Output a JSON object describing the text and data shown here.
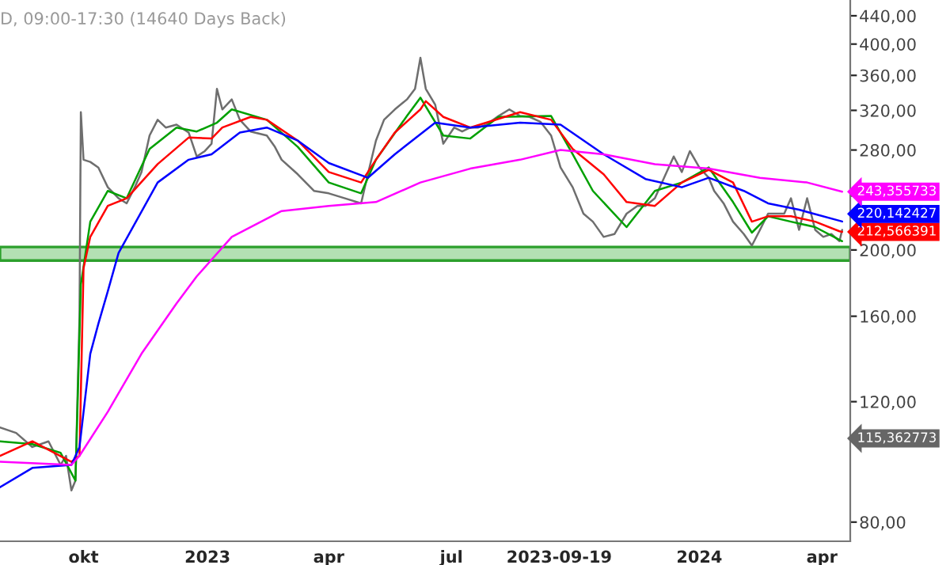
{
  "chart_data": {
    "type": "line",
    "title": "D, 09:00-17:30 (14640 Days Back)",
    "series": [
      {
        "color": "#6e6e6e",
        "x": [
          "2022-07-31",
          "2022-08-12",
          "2022-08-24",
          "2022-09-05",
          "2022-09-14",
          "2022-09-18",
          "2022-09-22",
          "2022-09-25",
          "2022-09-28",
          "2022-09-29",
          "2022-10-01",
          "2022-10-06",
          "2022-10-12",
          "2022-10-19",
          "2022-10-27",
          "2022-11-02",
          "2022-11-08",
          "2022-11-13",
          "2022-11-19",
          "2022-11-25",
          "2022-12-01",
          "2022-12-09",
          "2022-12-18",
          "2022-12-24",
          "2022-12-30",
          "2023-01-04",
          "2023-01-08",
          "2023-01-12",
          "2023-01-19",
          "2023-01-25",
          "2023-02-02",
          "2023-02-14",
          "2023-02-20",
          "2023-02-25",
          "2023-03-09",
          "2023-03-21",
          "2023-04-01",
          "2023-04-13",
          "2023-04-25",
          "2023-04-30",
          "2023-05-06",
          "2023-05-12",
          "2023-05-20",
          "2023-05-29",
          "2023-06-04",
          "2023-06-08",
          "2023-06-12",
          "2023-06-19",
          "2023-06-25",
          "2023-07-03",
          "2023-07-09",
          "2023-07-15",
          "2023-07-21",
          "2023-07-27",
          "2023-08-05",
          "2023-08-13",
          "2023-08-21",
          "2023-08-28",
          "2023-09-05",
          "2023-09-13",
          "2023-09-20",
          "2023-09-29",
          "2023-10-07",
          "2023-10-14",
          "2023-10-22",
          "2023-10-30",
          "2023-11-08",
          "2023-11-16",
          "2023-11-22",
          "2023-11-29",
          "2023-12-07",
          "2023-12-13",
          "2023-12-19",
          "2023-12-25",
          "2024-01-01",
          "2024-01-08",
          "2024-01-12",
          "2024-01-19",
          "2024-01-26",
          "2024-02-03",
          "2024-02-09",
          "2024-02-15",
          "2024-02-21",
          "2024-02-27",
          "2024-03-04",
          "2024-03-09",
          "2024-03-15",
          "2024-03-21",
          "2024-03-27",
          "2024-04-02",
          "2024-04-08",
          "2024-04-14",
          "2024-04-16"
        ],
        "values": [
          110,
          108,
          103,
          105,
          97,
          100,
          89,
          92,
          160,
          318,
          271,
          269,
          264,
          247,
          238,
          234,
          247,
          260,
          294,
          310,
          302,
          305,
          297,
          274,
          279,
          286,
          344,
          321,
          332,
          310,
          298,
          294,
          283,
          271,
          258,
          244,
          242,
          238,
          234,
          258,
          289,
          310,
          321,
          332,
          344,
          382,
          344,
          326,
          286,
          302,
          298,
          302,
          302,
          305,
          314,
          321,
          314,
          313,
          308,
          294,
          264,
          247,
          226,
          220,
          209,
          211,
          226,
          232,
          232,
          238,
          258,
          274,
          260,
          279,
          264,
          255,
          244,
          234,
          220,
          211,
          203,
          214,
          226,
          226,
          226,
          238,
          214,
          238,
          214,
          209,
          211,
          206,
          214
        ]
      },
      {
        "color": "#00a000",
        "x": [
          "2022-07-31",
          "2022-08-24",
          "2022-09-14",
          "2022-09-25",
          "2022-09-29",
          "2022-10-06",
          "2022-10-19",
          "2022-11-02",
          "2022-11-19",
          "2022-12-09",
          "2022-12-24",
          "2023-01-08",
          "2023-01-19",
          "2023-02-14",
          "2023-03-09",
          "2023-04-01",
          "2023-04-25",
          "2023-05-06",
          "2023-05-29",
          "2023-06-08",
          "2023-06-25",
          "2023-07-15",
          "2023-08-05",
          "2023-09-13",
          "2023-09-29",
          "2023-10-14",
          "2023-11-08",
          "2023-11-29",
          "2023-12-19",
          "2024-01-08",
          "2024-01-26",
          "2024-02-09",
          "2024-02-21",
          "2024-03-09",
          "2024-03-27",
          "2024-04-16"
        ],
        "values": [
          105,
          104,
          101,
          92,
          178,
          220,
          244,
          238,
          281,
          302,
          298,
          307,
          321,
          310,
          283,
          251,
          242,
          271,
          314,
          334,
          294,
          291,
          313,
          314,
          276,
          244,
          216,
          244,
          251,
          264,
          235,
          212,
          224,
          220,
          216,
          206
        ]
      },
      {
        "color": "#ff0000",
        "x": [
          "2022-07-31",
          "2022-08-24",
          "2022-09-22",
          "2022-09-28",
          "2022-10-01",
          "2022-10-06",
          "2022-10-19",
          "2022-11-02",
          "2022-11-25",
          "2022-12-18",
          "2023-01-04",
          "2023-01-12",
          "2023-02-02",
          "2023-02-14",
          "2023-03-09",
          "2023-04-01",
          "2023-04-25",
          "2023-05-06",
          "2023-05-20",
          "2023-06-08",
          "2023-06-12",
          "2023-06-25",
          "2023-07-15",
          "2023-08-21",
          "2023-09-13",
          "2023-09-29",
          "2023-10-22",
          "2023-11-08",
          "2023-11-29",
          "2023-12-19",
          "2024-01-08",
          "2024-01-26",
          "2024-02-09",
          "2024-02-21",
          "2024-03-09",
          "2024-03-27",
          "2024-04-14",
          "2024-04-16"
        ],
        "values": [
          100,
          105,
          98,
          100,
          188,
          209,
          232,
          238,
          267,
          292,
          291,
          302,
          313,
          310,
          289,
          260,
          251,
          271,
          297,
          321,
          330,
          313,
          302,
          318,
          310,
          281,
          258,
          235,
          232,
          251,
          262,
          251,
          220,
          224,
          224,
          220,
          213,
          212.566391
        ]
      },
      {
        "color": "#0000ff",
        "x": [
          "2022-07-31",
          "2022-08-24",
          "2022-09-22",
          "2022-09-28",
          "2022-10-06",
          "2022-10-12",
          "2022-10-19",
          "2022-10-27",
          "2022-11-25",
          "2022-12-18",
          "2023-01-04",
          "2023-01-25",
          "2023-02-14",
          "2023-03-09",
          "2023-04-01",
          "2023-04-30",
          "2023-05-20",
          "2023-06-19",
          "2023-07-15",
          "2023-08-21",
          "2023-09-20",
          "2023-10-22",
          "2023-11-22",
          "2023-12-19",
          "2024-01-08",
          "2024-02-03",
          "2024-02-21",
          "2024-03-15",
          "2024-04-16"
        ],
        "values": [
          90,
          96,
          97,
          103,
          141,
          156,
          174,
          198,
          251,
          271,
          276,
          297,
          302,
          289,
          268,
          255,
          276,
          307,
          302,
          307,
          305,
          276,
          254,
          247,
          255,
          244,
          234,
          229,
          220.142427
        ]
      },
      {
        "color": "#ff00ff",
        "x": [
          "2022-07-31",
          "2022-09-22",
          "2022-09-28",
          "2022-10-19",
          "2022-11-13",
          "2022-12-09",
          "2022-12-24",
          "2023-01-19",
          "2023-02-25",
          "2023-04-01",
          "2023-05-06",
          "2023-06-08",
          "2023-07-15",
          "2023-08-21",
          "2023-09-20",
          "2023-10-22",
          "2023-11-29",
          "2024-01-08",
          "2024-02-15",
          "2024-03-21",
          "2024-04-16"
        ],
        "values": [
          98,
          97,
          100,
          116,
          141,
          167,
          183,
          209,
          228,
          232,
          235,
          251,
          263,
          271,
          280,
          276,
          267,
          263,
          255,
          251,
          243.355733
        ]
      }
    ],
    "bands": [
      {
        "axis": "y",
        "from": 193,
        "to": 202,
        "color": "#b3e0b3"
      }
    ],
    "annotations": [
      {
        "text": "243,355733",
        "x": "2024-04-16",
        "y": 243.355733
      },
      {
        "text": "220,142427",
        "x": "2024-04-16",
        "y": 220.142427
      },
      {
        "text": "212,566391",
        "x": "2024-04-16",
        "y": 212.566391
      },
      "115,362773"
    ],
    "log": true,
    "xlim": [
      "2022-07-31",
      "2024-04-22"
    ],
    "xticks": [
      {
        "value": "2022-10-01",
        "label": "okt"
      },
      {
        "value": "2023-01-01",
        "label": "2023"
      },
      {
        "value": "2023-04-01",
        "label": "apr"
      },
      {
        "value": "2023-07-01",
        "label": "jul"
      },
      {
        "value": "2023-09-19",
        "label": "2023-09-19"
      },
      {
        "value": "2024-01-01",
        "label": "2024"
      },
      {
        "value": "2024-04-01",
        "label": "apr"
      }
    ],
    "ylim": [
      75,
      464
    ],
    "yticks": [
      {
        "value": 80,
        "label": "80,00"
      },
      {
        "value": 120,
        "label": "120,00"
      },
      {
        "value": 160,
        "label": "160,00"
      },
      {
        "value": 200,
        "label": "200,00"
      },
      {
        "value": 240,
        "label": null
      },
      {
        "value": 280,
        "label": "280,00"
      },
      {
        "value": 320,
        "label": "320,00"
      },
      {
        "value": 360,
        "label": "360,00"
      },
      {
        "value": 400,
        "label": "400,00"
      },
      {
        "value": 440,
        "label": "440,00"
      }
    ],
    "grid": false,
    "legend": false
  }
}
